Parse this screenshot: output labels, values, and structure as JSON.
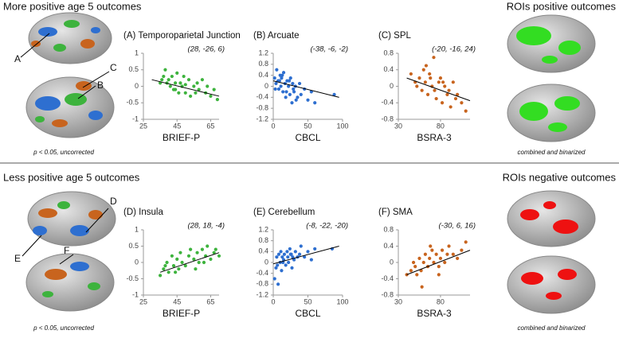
{
  "sections": [
    {
      "title": "More positive age 5 outcomes",
      "roi_title": "ROIs positive outcomes",
      "caption": "p < 0.05, uncorrected",
      "roi_caption": "combined and binarized",
      "brain_labels": [
        "A",
        "B",
        "C"
      ]
    },
    {
      "title": "Less positive age 5 outcomes",
      "roi_title": "ROIs negative outcomes",
      "caption": "p < 0.05, uncorrected",
      "roi_caption": "combined and binarized",
      "brain_labels": [
        "D",
        "E",
        "F"
      ]
    }
  ],
  "chart_data": [
    {
      "type": "scatter",
      "title": "(A) Temporoparietal Junction",
      "subtitle": "(28, -26, 6)",
      "x_label": "BRIEF-P",
      "color": "#3db33d",
      "x": [
        35,
        37,
        38,
        40,
        41,
        42,
        43,
        44,
        45,
        46,
        47,
        48,
        49,
        50,
        52,
        53,
        55,
        57,
        58,
        60,
        62,
        63,
        65,
        67,
        69,
        36,
        39,
        44,
        50,
        56
      ],
      "y": [
        0.1,
        0.3,
        0.5,
        0.2,
        0.0,
        0.3,
        -0.1,
        0.1,
        0.4,
        -0.2,
        0.1,
        0.0,
        0.3,
        -0.2,
        0.2,
        -0.3,
        0.0,
        0.1,
        -0.1,
        0.2,
        -0.2,
        0.0,
        -0.3,
        -0.1,
        -0.4,
        0.2,
        0.1,
        -0.1,
        0.05,
        -0.2
      ],
      "trendline": {
        "x": [
          30,
          70
        ],
        "y": [
          0.2,
          -0.3
        ]
      },
      "xlim": [
        25,
        70
      ],
      "xticks": [
        25,
        45,
        65
      ],
      "ylim": [
        -1,
        1
      ],
      "yticks": [
        -1,
        -0.5,
        0,
        0.5,
        1
      ]
    },
    {
      "type": "scatter",
      "title": "(B) Arcuate",
      "subtitle": "(-38, -6, -2)",
      "x_label": "CBCL",
      "color": "#2e6fd0",
      "x": [
        2,
        4,
        5,
        7,
        8,
        10,
        11,
        12,
        14,
        15,
        17,
        18,
        20,
        22,
        24,
        25,
        27,
        28,
        30,
        32,
        35,
        38,
        40,
        45,
        50,
        55,
        60,
        88,
        3,
        9,
        13,
        19,
        23,
        29,
        33
      ],
      "y": [
        0.3,
        0.1,
        0.6,
        0.2,
        -0.1,
        0.4,
        0.0,
        0.3,
        -0.2,
        0.5,
        0.1,
        -0.4,
        0.2,
        0.0,
        -0.3,
        0.3,
        -0.6,
        0.1,
        -0.2,
        0.0,
        -0.4,
        0.1,
        -0.3,
        -0.1,
        -0.5,
        -0.2,
        -0.6,
        -0.3,
        -0.1,
        0.2,
        0.4,
        -0.2,
        0.2,
        -0.1,
        -0.5
      ],
      "trendline": {
        "x": [
          0,
          95
        ],
        "y": [
          0.2,
          -0.4
        ]
      },
      "xlim": [
        0,
        100
      ],
      "xticks": [
        0,
        50,
        100
      ],
      "ylim": [
        -1.2,
        1.2
      ],
      "yticks": [
        -1.2,
        -0.8,
        -0.4,
        0,
        0.4,
        0.8,
        1.2
      ]
    },
    {
      "type": "scatter",
      "title": "(C) SPL",
      "subtitle": "(-20, -16, 24)",
      "x_label": "BSRA-3",
      "color": "#c8641e",
      "x": [
        45,
        50,
        52,
        55,
        58,
        60,
        62,
        65,
        67,
        70,
        72,
        75,
        78,
        80,
        82,
        85,
        88,
        90,
        92,
        95,
        98,
        100,
        105,
        110,
        63,
        73,
        83,
        68
      ],
      "y": [
        0.3,
        0.1,
        0.0,
        0.2,
        -0.1,
        0.4,
        0.1,
        -0.2,
        0.3,
        0.0,
        0.7,
        -0.3,
        0.1,
        0.2,
        -0.4,
        0.0,
        -0.2,
        -0.1,
        -0.5,
        0.1,
        -0.3,
        -0.2,
        -0.4,
        -0.6,
        0.5,
        -0.1,
        0.1,
        0.2
      ],
      "trendline": {
        "x": [
          40,
          115
        ],
        "y": [
          0.2,
          -0.35
        ]
      },
      "xlim": [
        30,
        115
      ],
      "xticks": [
        30,
        80
      ],
      "ylim": [
        -0.8,
        0.8
      ],
      "yticks": [
        -0.8,
        -0.4,
        0,
        0.4,
        0.8
      ]
    },
    {
      "type": "scatter",
      "title": "(D) Insula",
      "subtitle": "(28, 18, -4)",
      "x_label": "BRIEF-P",
      "color": "#3db33d",
      "x": [
        35,
        37,
        39,
        40,
        42,
        43,
        45,
        46,
        47,
        48,
        50,
        52,
        53,
        55,
        57,
        58,
        60,
        62,
        63,
        65,
        67,
        68,
        70,
        38,
        44,
        56,
        61
      ],
      "y": [
        -0.4,
        -0.2,
        0.0,
        -0.3,
        0.2,
        -0.1,
        0.1,
        -0.2,
        0.3,
        0.0,
        -0.1,
        0.2,
        0.4,
        0.1,
        0.3,
        0.0,
        0.4,
        0.2,
        0.5,
        0.1,
        0.3,
        0.4,
        0.2,
        -0.1,
        -0.3,
        -0.2,
        0.0
      ],
      "trendline": {
        "x": [
          35,
          70
        ],
        "y": [
          -0.3,
          0.3
        ]
      },
      "xlim": [
        25,
        70
      ],
      "xticks": [
        25,
        45,
        65
      ],
      "ylim": [
        -1,
        1
      ],
      "yticks": [
        -1,
        -0.5,
        0,
        0.5,
        1
      ]
    },
    {
      "type": "scatter",
      "title": "(E) Cerebellum",
      "subtitle": "(-8, -22, -20)",
      "x_label": "CBCL",
      "color": "#2e6fd0",
      "x": [
        2,
        4,
        5,
        6,
        8,
        10,
        11,
        12,
        13,
        15,
        16,
        18,
        20,
        21,
        22,
        24,
        25,
        27,
        28,
        30,
        32,
        35,
        38,
        40,
        45,
        50,
        55,
        60,
        85,
        7,
        14,
        26
      ],
      "y": [
        -0.6,
        -0.2,
        0.2,
        -0.1,
        0.3,
        0.0,
        0.4,
        -0.3,
        0.2,
        0.1,
        0.3,
        -0.1,
        0.4,
        0.2,
        0.0,
        0.5,
        0.3,
        -0.2,
        0.2,
        0.1,
        0.4,
        0.2,
        0.3,
        0.6,
        0.2,
        0.4,
        0.1,
        0.5,
        0.5,
        -0.8,
        0.0,
        0.3
      ],
      "trendline": {
        "x": [
          0,
          95
        ],
        "y": [
          -0.05,
          0.6
        ]
      },
      "xlim": [
        0,
        100
      ],
      "xticks": [
        0,
        50,
        100
      ],
      "ylim": [
        -1.2,
        1.2
      ],
      "yticks": [
        -1.2,
        -0.8,
        -0.4,
        0,
        0.4,
        0.8,
        1.2
      ]
    },
    {
      "type": "scatter",
      "title": "(F) SMA",
      "subtitle": "(-30, 6, 16)",
      "x_label": "BSRA-3",
      "color": "#c8641e",
      "x": [
        40,
        45,
        48,
        50,
        52,
        55,
        57,
        60,
        62,
        65,
        67,
        70,
        72,
        75,
        78,
        80,
        82,
        85,
        88,
        90,
        95,
        100,
        105,
        110,
        58,
        68,
        78
      ],
      "y": [
        -0.3,
        -0.2,
        0.0,
        -0.1,
        -0.3,
        0.1,
        -0.2,
        0.0,
        0.2,
        -0.1,
        0.1,
        0.3,
        0.0,
        0.2,
        -0.1,
        0.1,
        0.3,
        0.0,
        0.2,
        0.4,
        0.2,
        0.1,
        0.3,
        0.5,
        -0.6,
        0.4,
        -0.3
      ],
      "trendline": {
        "x": [
          40,
          115
        ],
        "y": [
          -0.3,
          0.3
        ]
      },
      "xlim": [
        30,
        115
      ],
      "xticks": [
        30,
        80
      ],
      "ylim": [
        -0.8,
        0.8
      ],
      "yticks": [
        -0.8,
        -0.4,
        0,
        0.4,
        0.8
      ]
    }
  ]
}
